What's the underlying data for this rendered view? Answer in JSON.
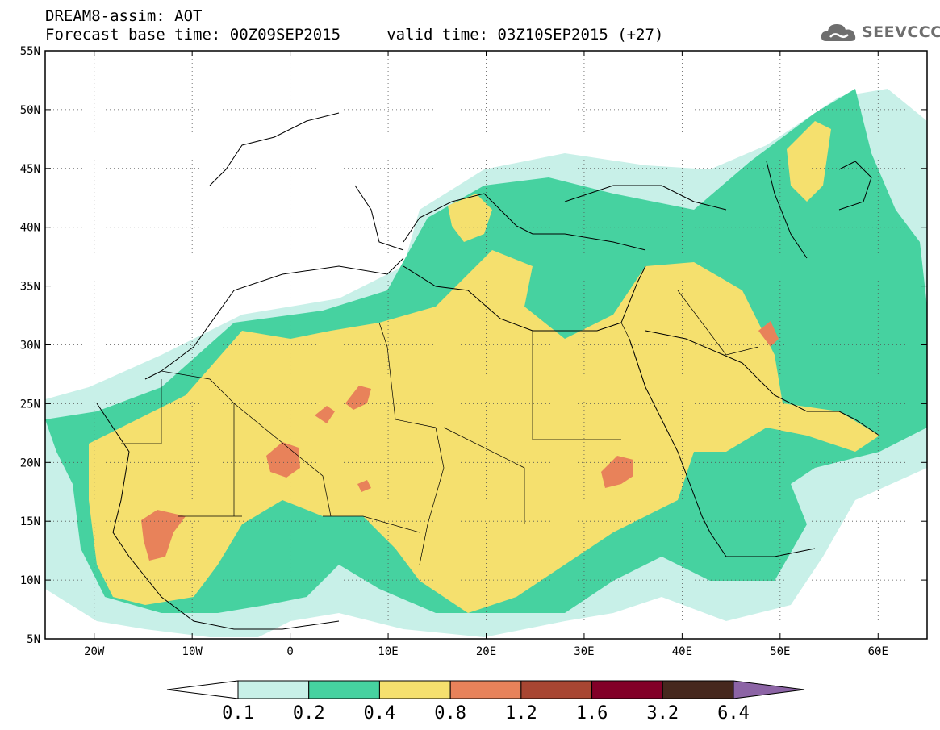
{
  "title": {
    "line1": "DREAM8-assim: AOT",
    "line2": "Forecast base time: 00Z09SEP2015     valid time: 03Z10SEP2015 (+27)"
  },
  "logo": {
    "text": "SEEVCCC",
    "icon": "cloud-logo-icon"
  },
  "map": {
    "lon_range": [
      -25,
      65
    ],
    "lat_range": [
      5,
      55
    ],
    "lon_ticks": [
      {
        "value": -20,
        "label": "20W"
      },
      {
        "value": -10,
        "label": "10W"
      },
      {
        "value": 0,
        "label": "0"
      },
      {
        "value": 10,
        "label": "10E"
      },
      {
        "value": 20,
        "label": "20E"
      },
      {
        "value": 30,
        "label": "30E"
      },
      {
        "value": 40,
        "label": "40E"
      },
      {
        "value": 50,
        "label": "50E"
      },
      {
        "value": 60,
        "label": "60E"
      }
    ],
    "lat_ticks": [
      {
        "value": 55,
        "label": "55N"
      },
      {
        "value": 50,
        "label": "50N"
      },
      {
        "value": 45,
        "label": "45N"
      },
      {
        "value": 40,
        "label": "40N"
      },
      {
        "value": 35,
        "label": "35N"
      },
      {
        "value": 30,
        "label": "30N"
      },
      {
        "value": 25,
        "label": "25N"
      },
      {
        "value": 20,
        "label": "20N"
      },
      {
        "value": 15,
        "label": "15N"
      },
      {
        "value": 10,
        "label": "10N"
      },
      {
        "value": 5,
        "label": "5N"
      }
    ],
    "grid": true
  },
  "colorbar": {
    "colors": [
      "#ffffff",
      "#c8f0e8",
      "#46d2a0",
      "#f5e06e",
      "#e8825a",
      "#a84632",
      "#820028",
      "#46281e",
      "#8c64a5"
    ],
    "labels": [
      "0.1",
      "0.2",
      "0.4",
      "0.8",
      "1.2",
      "1.6",
      "3.2",
      "6.4"
    ]
  }
}
